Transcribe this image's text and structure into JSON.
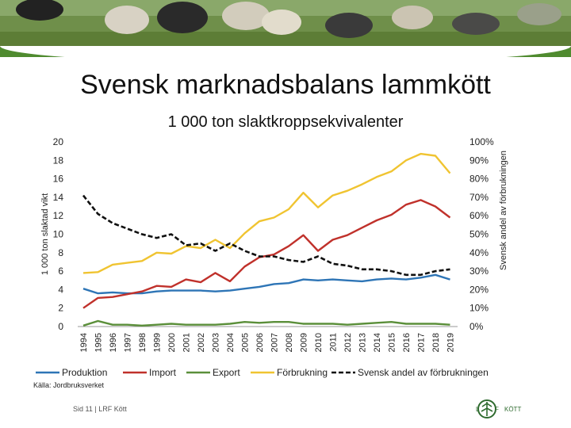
{
  "slide": {
    "title": "Svensk marknadsbalans lammkött",
    "source": "Källa: Jordbruksverket",
    "footer": "Sid 11 | LRF Kött"
  },
  "colors": {
    "produktion": "#2e75b6",
    "import": "#c0312b",
    "export": "#5b8f3a",
    "forbrukning": "#f0c431",
    "andel": "#111111",
    "banner_green": "#4f8b2f"
  },
  "chart_data": {
    "type": "line",
    "title": "1 000 ton slaktkroppsekvivalenter",
    "ylabel": "1 000 ton slaktad vikt",
    "y2label": "Svensk andel av förbrukningen",
    "ylim": [
      0,
      20
    ],
    "y2lim": [
      0,
      100
    ],
    "yticks": [
      "0",
      "2",
      "4",
      "6",
      "8",
      "10",
      "12",
      "14",
      "16",
      "18",
      "20"
    ],
    "y2ticks": [
      "0%",
      "10%",
      "20%",
      "30%",
      "40%",
      "50%",
      "60%",
      "70%",
      "80%",
      "90%",
      "100%"
    ],
    "grid": false,
    "legend_position": "bottom",
    "categories": [
      "1994",
      "1995",
      "1996",
      "1997",
      "1998",
      "1999",
      "2000",
      "2001",
      "2002",
      "2003",
      "2004",
      "2005",
      "2006",
      "2007",
      "2008",
      "2009",
      "2010",
      "2011",
      "2012",
      "2013",
      "2014",
      "2015",
      "2016",
      "2017",
      "2018",
      "2019"
    ],
    "series": [
      {
        "name": "Produktion",
        "axis": "left",
        "style": "solid",
        "values": [
          4.1,
          3.6,
          3.7,
          3.6,
          3.6,
          3.8,
          3.9,
          3.9,
          3.9,
          3.8,
          3.9,
          4.1,
          4.3,
          4.6,
          4.7,
          5.1,
          5.0,
          5.1,
          5.0,
          4.9,
          5.1,
          5.2,
          5.1,
          5.3,
          5.6,
          5.1
        ]
      },
      {
        "name": "Import",
        "axis": "left",
        "style": "solid",
        "values": [
          2.0,
          3.1,
          3.2,
          3.5,
          3.8,
          4.4,
          4.3,
          5.1,
          4.8,
          5.8,
          4.9,
          6.5,
          7.5,
          7.8,
          8.7,
          9.9,
          8.2,
          9.4,
          9.9,
          10.7,
          11.5,
          12.1,
          13.2,
          13.7,
          13.0,
          11.8
        ]
      },
      {
        "name": "Export",
        "axis": "left",
        "style": "solid",
        "values": [
          0.1,
          0.6,
          0.2,
          0.2,
          0.1,
          0.2,
          0.3,
          0.2,
          0.2,
          0.2,
          0.3,
          0.5,
          0.4,
          0.5,
          0.5,
          0.3,
          0.3,
          0.3,
          0.2,
          0.3,
          0.4,
          0.5,
          0.3,
          0.3,
          0.3,
          0.2
        ]
      },
      {
        "name": "Förbrukning",
        "axis": "left",
        "style": "solid",
        "values": [
          5.8,
          5.9,
          6.7,
          6.9,
          7.1,
          8.0,
          7.9,
          8.7,
          8.5,
          9.4,
          8.5,
          10.1,
          11.4,
          11.8,
          12.7,
          14.5,
          12.9,
          14.2,
          14.7,
          15.4,
          16.2,
          16.8,
          18.0,
          18.7,
          18.5,
          16.6
        ]
      },
      {
        "name": "Svensk andel av förbrukningen",
        "axis": "right",
        "style": "dashed",
        "values": [
          71,
          61,
          56,
          53,
          50,
          48,
          50,
          44,
          45,
          41,
          45,
          41,
          38,
          38,
          36,
          35,
          38,
          34,
          33,
          31,
          31,
          30,
          28,
          28,
          30,
          31
        ]
      }
    ]
  }
}
